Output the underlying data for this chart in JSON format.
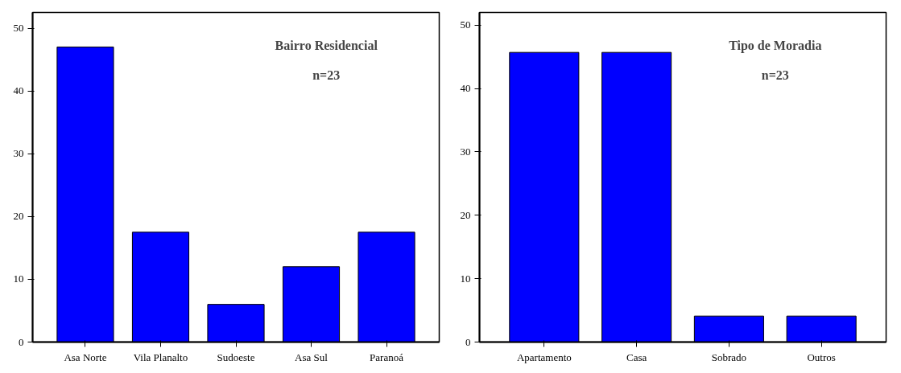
{
  "chart_data": [
    {
      "type": "bar",
      "title": "Bairro Residencial",
      "subtitle": "n=23",
      "categories": [
        "Asa Norte",
        "Vila Planalto",
        "Sudoeste",
        "Asa Sul",
        "Paranoá"
      ],
      "values": [
        47,
        17.5,
        6,
        12,
        17.5
      ],
      "color": "#0000ff",
      "ylim": [
        0,
        52.5
      ],
      "yticks": [
        0,
        10,
        20,
        30,
        40,
        50
      ],
      "grid": false
    },
    {
      "type": "bar",
      "title": "Tipo de Moradia",
      "subtitle": "n=23",
      "categories": [
        "Apartamento",
        "Casa",
        "Sobrado",
        "Outros"
      ],
      "values": [
        45.7,
        45.7,
        4.1,
        4.1
      ],
      "color": "#0000ff",
      "ylim": [
        0,
        52
      ],
      "yticks": [
        0,
        10,
        20,
        30,
        40,
        50
      ],
      "grid": false
    }
  ]
}
